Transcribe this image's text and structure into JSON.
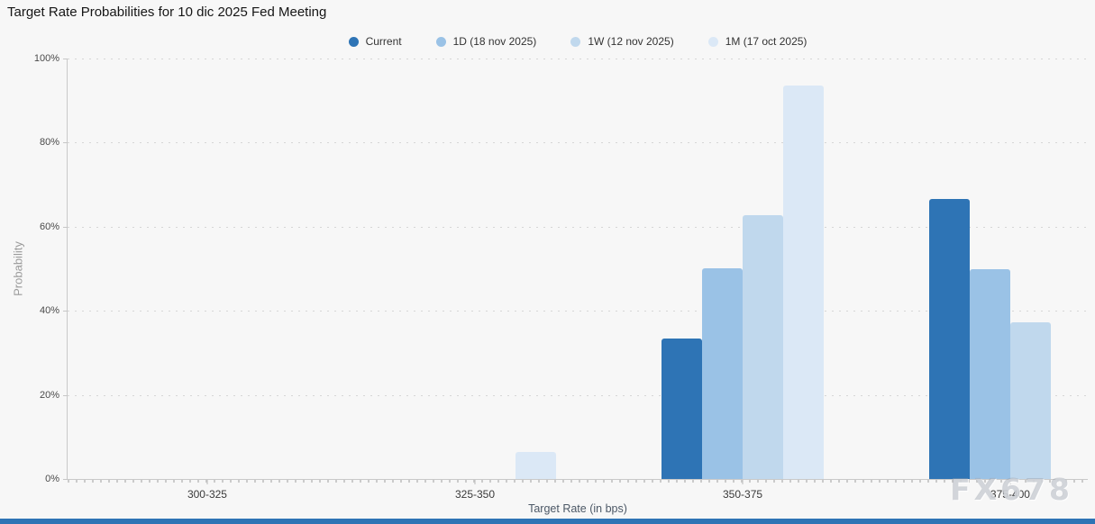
{
  "title": "Target Rate Probabilities for 10 dic 2025 Fed Meeting",
  "watermark": "FX678",
  "colors": {
    "background": "#f7f7f7",
    "accent_bar": "#2e74b5",
    "gridline": "#d6d6d6",
    "axis_line": "#c9c9c9"
  },
  "chart_data": {
    "type": "bar",
    "title": "Target Rate Probabilities for 10 dic 2025 Fed Meeting",
    "xlabel": "Target Rate (in bps)",
    "ylabel": "Probability",
    "ylim": [
      0,
      100
    ],
    "ytick_labels": [
      "0%",
      "20%",
      "40%",
      "60%",
      "80%",
      "100%"
    ],
    "grid": "horizontal-dotted",
    "legend_position": "top",
    "categories": [
      "300-325",
      "325-350",
      "350-375",
      "375-400"
    ],
    "series": [
      {
        "name": "Current",
        "color": "#2e74b5",
        "values": [
          0,
          0,
          33.5,
          66.5
        ]
      },
      {
        "name": "1D (18 nov 2025)",
        "color": "#9ac2e6",
        "values": [
          0,
          0,
          50.2,
          49.8
        ]
      },
      {
        "name": "1W (12 nov 2025)",
        "color": "#c0d8ed",
        "values": [
          0,
          0,
          62.8,
          37.2
        ]
      },
      {
        "name": "1M (17 oct 2025)",
        "color": "#dbe8f6",
        "values": [
          0,
          6.4,
          93.6,
          0
        ]
      }
    ]
  }
}
